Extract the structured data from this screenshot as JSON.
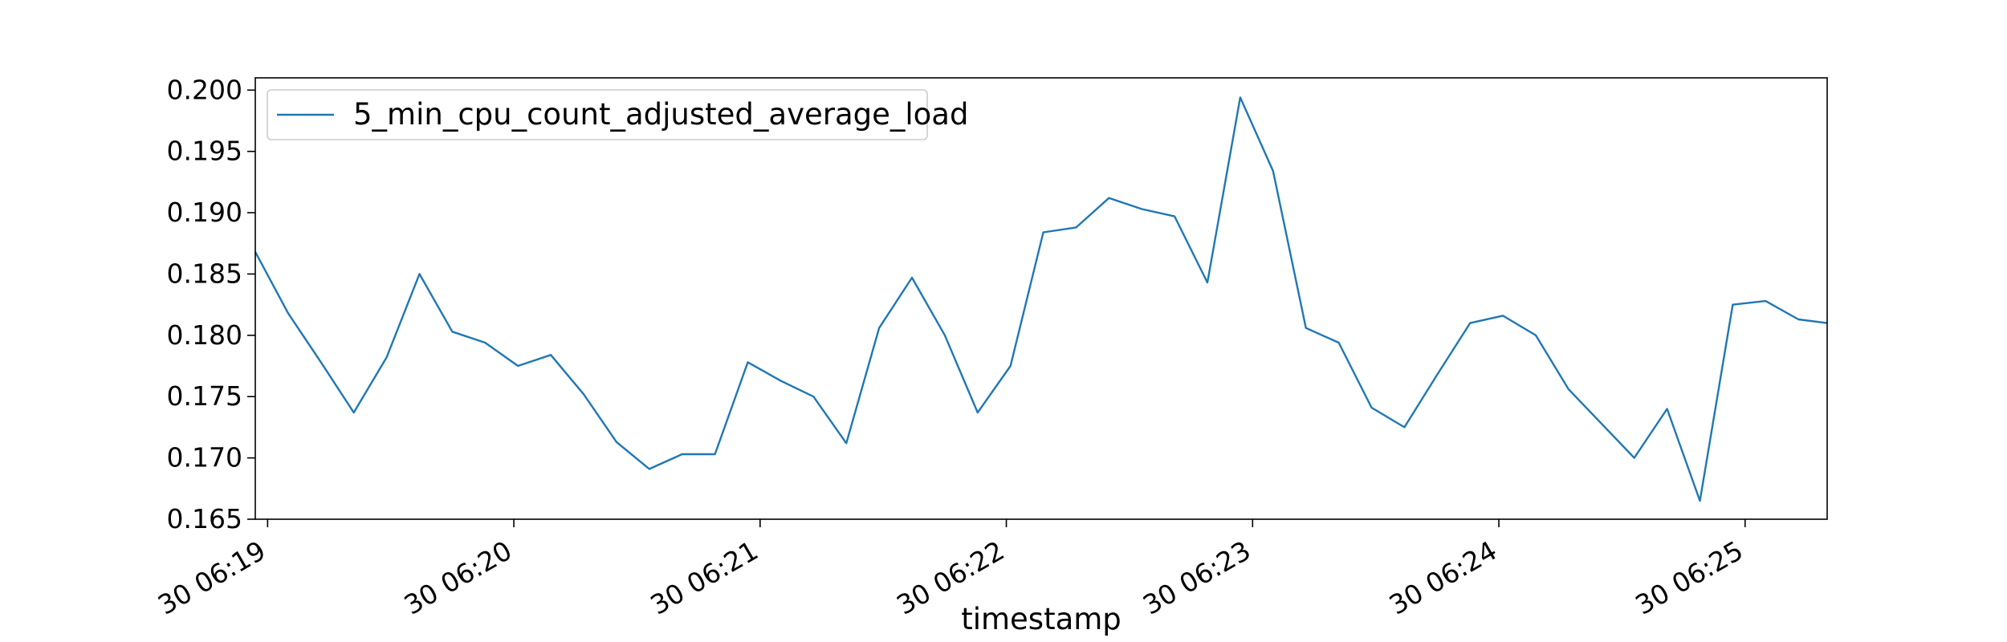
{
  "chart_data": {
    "type": "line",
    "title": "",
    "xlabel": "timestamp",
    "ylabel": "",
    "x_tick_labels": [
      "30 06:19",
      "30 06:20",
      "30 06:21",
      "30 06:22",
      "30 06:23",
      "30 06:24",
      "30 06:25"
    ],
    "y_tick_labels": [
      "0.165",
      "0.170",
      "0.175",
      "0.180",
      "0.185",
      "0.190",
      "0.195",
      "0.200"
    ],
    "ylim": [
      0.165,
      0.201
    ],
    "xlim": [
      "06:18:57",
      "06:25:20"
    ],
    "legend_position": "upper-left",
    "grid": false,
    "colors": {
      "series": "#1f77b4"
    },
    "series": [
      {
        "name": "5_min_cpu_count_adjusted_average_load",
        "x": [
          "06:18:57",
          "06:19:05",
          "06:19:13",
          "06:19:21",
          "06:19:29",
          "06:19:37",
          "06:19:45",
          "06:19:53",
          "06:20:01",
          "06:20:09",
          "06:20:17",
          "06:20:25",
          "06:20:33",
          "06:20:41",
          "06:20:49",
          "06:20:57",
          "06:21:05",
          "06:21:13",
          "06:21:21",
          "06:21:29",
          "06:21:37",
          "06:21:45",
          "06:21:53",
          "06:22:01",
          "06:22:09",
          "06:22:17",
          "06:22:25",
          "06:22:33",
          "06:22:41",
          "06:22:49",
          "06:22:57",
          "06:23:05",
          "06:23:13",
          "06:23:21",
          "06:23:29",
          "06:23:37",
          "06:23:45",
          "06:23:53",
          "06:24:01",
          "06:24:09",
          "06:24:17",
          "06:24:25",
          "06:24:33",
          "06:24:41",
          "06:24:49",
          "06:24:57",
          "06:25:05",
          "06:25:13",
          "06:25:20"
        ],
        "values": [
          0.1868,
          0.1818,
          0.1778,
          0.1737,
          0.1782,
          0.185,
          0.1803,
          0.1794,
          0.1775,
          0.1784,
          0.1752,
          0.1713,
          0.1691,
          0.1703,
          0.1703,
          0.1778,
          0.1763,
          0.175,
          0.1712,
          0.1806,
          0.1847,
          0.18,
          0.1737,
          0.1775,
          0.1884,
          0.1888,
          0.1912,
          0.1903,
          0.1897,
          0.1843,
          0.1994,
          0.1934,
          0.1806,
          0.1794,
          0.1741,
          0.1725,
          0.1768,
          0.181,
          0.1816,
          0.18,
          0.1756,
          0.1728,
          0.17,
          0.174,
          0.1665,
          0.1825,
          0.1828,
          0.1813,
          0.181
        ]
      }
    ]
  }
}
